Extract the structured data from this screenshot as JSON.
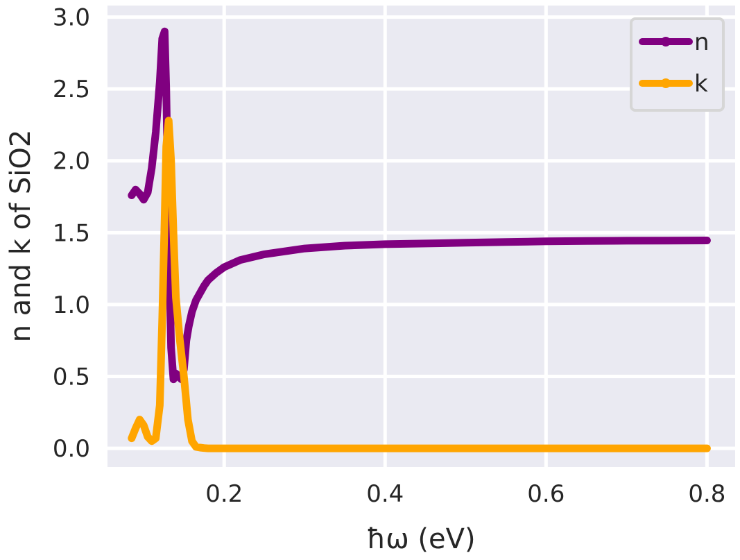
{
  "chart_data": {
    "type": "line",
    "title": "",
    "xlabel": "ħω (eV)",
    "ylabel": "n and k of SiO2",
    "xlim": [
      0.055,
      0.835
    ],
    "ylim": [
      -0.13,
      3.08
    ],
    "xticks": [
      0.2,
      0.4,
      0.6,
      0.8
    ],
    "xtick_labels": [
      "0.2",
      "0.4",
      "0.6",
      "0.8"
    ],
    "yticks": [
      0.0,
      0.5,
      1.0,
      1.5,
      2.0,
      2.5,
      3.0
    ],
    "ytick_labels": [
      "0.0",
      "0.5",
      "1.0",
      "1.5",
      "2.0",
      "2.5",
      "3.0"
    ],
    "grid": true,
    "legend_position": "top-right",
    "background_color": "#eaeaf2",
    "grid_color": "#ffffff",
    "series": [
      {
        "name": "n",
        "color": "#800080",
        "x": [
          0.085,
          0.09,
          0.095,
          0.1,
          0.105,
          0.11,
          0.115,
          0.12,
          0.123,
          0.126,
          0.128,
          0.131,
          0.134,
          0.137,
          0.14,
          0.143,
          0.147,
          0.15,
          0.153,
          0.156,
          0.16,
          0.165,
          0.17,
          0.175,
          0.18,
          0.19,
          0.2,
          0.22,
          0.25,
          0.3,
          0.35,
          0.4,
          0.45,
          0.5,
          0.55,
          0.6,
          0.65,
          0.7,
          0.75,
          0.8
        ],
        "y": [
          1.76,
          1.8,
          1.77,
          1.73,
          1.78,
          1.95,
          2.2,
          2.55,
          2.85,
          2.9,
          2.5,
          1.5,
          0.7,
          0.48,
          0.52,
          0.5,
          0.48,
          0.55,
          0.75,
          0.85,
          0.95,
          1.03,
          1.08,
          1.13,
          1.17,
          1.22,
          1.26,
          1.31,
          1.35,
          1.39,
          1.41,
          1.42,
          1.425,
          1.43,
          1.435,
          1.44,
          1.442,
          1.444,
          1.445,
          1.446
        ]
      },
      {
        "name": "k",
        "color": "#ffa500",
        "x": [
          0.085,
          0.09,
          0.095,
          0.1,
          0.105,
          0.11,
          0.115,
          0.12,
          0.123,
          0.126,
          0.128,
          0.131,
          0.134,
          0.137,
          0.14,
          0.145,
          0.15,
          0.155,
          0.16,
          0.165,
          0.17,
          0.175,
          0.18,
          0.2,
          0.3,
          0.4,
          0.5,
          0.6,
          0.7,
          0.8
        ],
        "y": [
          0.07,
          0.14,
          0.2,
          0.16,
          0.08,
          0.05,
          0.07,
          0.3,
          0.9,
          1.6,
          2.1,
          2.28,
          2.0,
          1.5,
          1.05,
          0.75,
          0.5,
          0.2,
          0.05,
          0.01,
          0.005,
          0.002,
          0.0,
          0.0,
          0.0,
          0.0,
          0.0,
          0.0,
          0.0,
          0.0
        ]
      }
    ]
  }
}
